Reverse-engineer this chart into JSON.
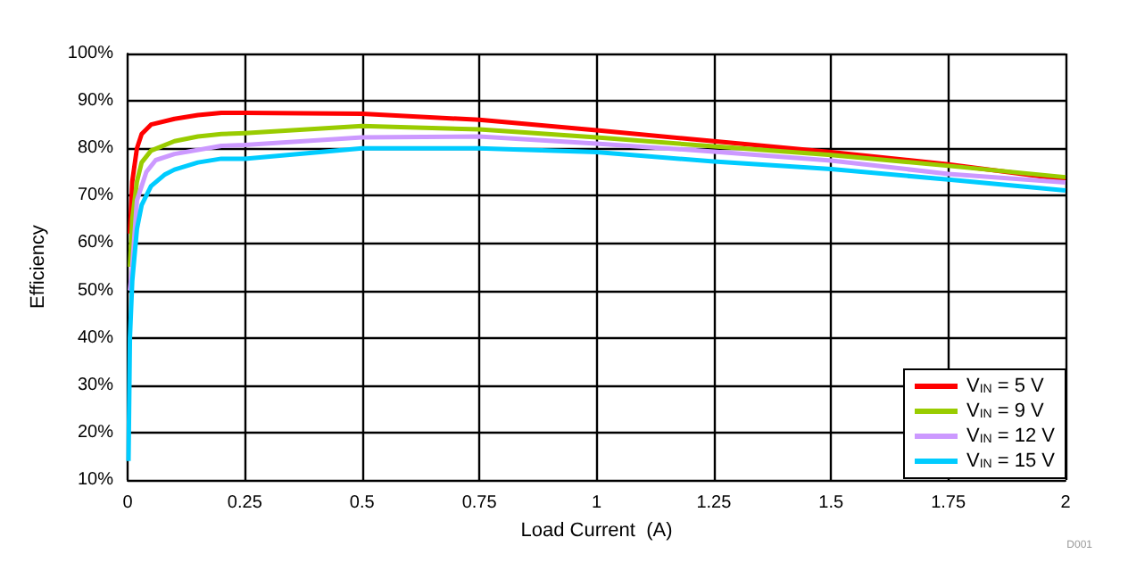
{
  "chart_data": {
    "type": "line",
    "xlabel": "Load Current  (A)",
    "ylabel": "Efficiency",
    "annotations": [
      "D001"
    ],
    "xlim": [
      0,
      2
    ],
    "xticks": [
      0,
      0.25,
      0.5,
      0.75,
      1,
      1.25,
      1.5,
      1.75,
      2
    ],
    "ylim": [
      10,
      100
    ],
    "yticks": [
      {
        "value": 10,
        "label": "10%"
      },
      {
        "value": 20,
        "label": "20%"
      },
      {
        "value": 30,
        "label": "30%"
      },
      {
        "value": 40,
        "label": "40%"
      },
      {
        "value": 50,
        "label": "50%"
      },
      {
        "value": 60,
        "label": "60%"
      },
      {
        "value": 70,
        "label": "70%"
      },
      {
        "value": 80,
        "label": "80%"
      },
      {
        "value": 90,
        "label": "90%"
      },
      {
        "value": 100,
        "label": "100%"
      }
    ],
    "grid": true,
    "legend": "bottom right",
    "marker": "none",
    "line_style": "solid",
    "series": [
      {
        "name": "V$_{IN}$ = 5 V",
        "color": "#ff0000",
        "x": [
          0.005,
          0.01,
          0.02,
          0.03,
          0.05,
          0.1,
          0.15,
          0.2,
          0.25,
          0.5,
          0.75,
          1,
          1.25,
          1.5,
          1.75,
          2
        ],
        "values": [
          62,
          73,
          80,
          83,
          85,
          86.2,
          87,
          87.5,
          87.5,
          87.3,
          86,
          83.8,
          81.5,
          79.2,
          76.6,
          73.4
        ]
      },
      {
        "name": "V$_{IN}$ = 9 V",
        "color": "#99cc00",
        "x": [
          0.005,
          0.01,
          0.02,
          0.03,
          0.05,
          0.1,
          0.15,
          0.2,
          0.25,
          0.5,
          0.75,
          1,
          1.25,
          1.5,
          1.75,
          2
        ],
        "values": [
          55,
          65,
          73,
          77,
          79.5,
          81.5,
          82.5,
          83,
          83.2,
          84.7,
          84,
          82.3,
          80.4,
          78.6,
          76.3,
          73.9
        ]
      },
      {
        "name": "V$_{IN}$ = 12 V",
        "color": "#cc99ff",
        "x": [
          0.005,
          0.01,
          0.02,
          0.04,
          0.06,
          0.1,
          0.2,
          0.25,
          0.5,
          0.75,
          1,
          1.25,
          1.5,
          1.75,
          2
        ],
        "values": [
          50,
          55,
          69,
          75,
          77.5,
          78.8,
          80.5,
          80.7,
          82.3,
          82.5,
          81,
          79.3,
          77.4,
          74.6,
          72.8
        ]
      },
      {
        "name": "V$_{IN}$ = 15 V",
        "color": "#00ccff",
        "x": [
          0.002,
          0.005,
          0.01,
          0.02,
          0.03,
          0.05,
          0.08,
          0.1,
          0.15,
          0.2,
          0.25,
          0.5,
          0.75,
          1,
          1.25,
          1.5,
          1.75,
          2
        ],
        "values": [
          14,
          40,
          52,
          63,
          68,
          72,
          74.5,
          75.5,
          77,
          77.8,
          77.8,
          80,
          80,
          79.2,
          77.2,
          75.6,
          73.4,
          71.1
        ]
      }
    ]
  }
}
